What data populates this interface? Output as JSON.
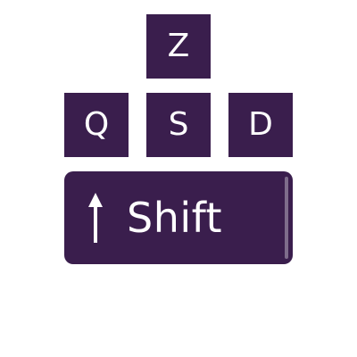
{
  "colors": {
    "key_background": "#3a1e4d",
    "key_text": "#ffffff",
    "page_background": "#ffffff"
  },
  "keys": {
    "z": {
      "label": "Z"
    },
    "q": {
      "label": "Q"
    },
    "s": {
      "label": "S"
    },
    "d": {
      "label": "D"
    },
    "shift": {
      "label": "Shift",
      "icon": "up-arrow-icon"
    }
  }
}
